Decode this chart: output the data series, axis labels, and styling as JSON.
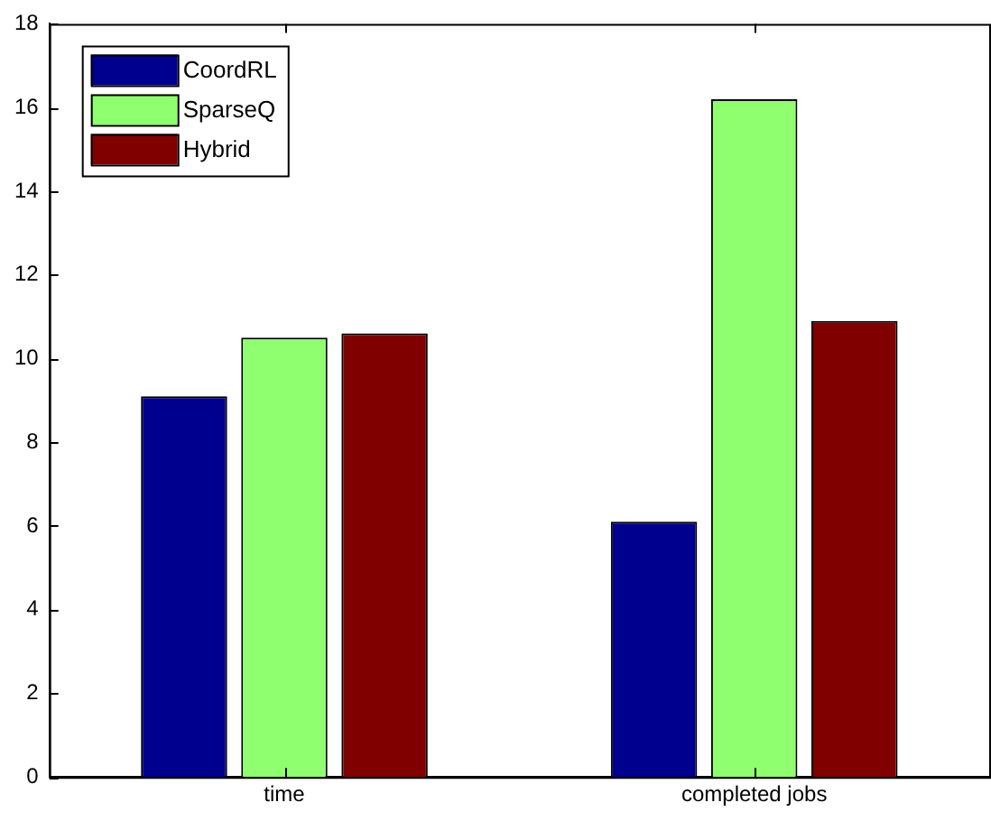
{
  "chart_data": {
    "type": "bar",
    "categories": [
      "time",
      "completed jobs"
    ],
    "series": [
      {
        "name": "CoordRL",
        "color": "#00008f",
        "values": [
          9.1,
          6.1
        ]
      },
      {
        "name": "SparseQ",
        "color": "#8fff6f",
        "values": [
          10.5,
          16.2
        ]
      },
      {
        "name": "Hybrid",
        "color": "#800000",
        "values": [
          10.6,
          10.9
        ]
      }
    ],
    "ylim": [
      0,
      18
    ],
    "yticks": [
      0,
      2,
      4,
      6,
      8,
      10,
      12,
      14,
      16,
      18
    ],
    "grid": false,
    "legend": "top left"
  }
}
